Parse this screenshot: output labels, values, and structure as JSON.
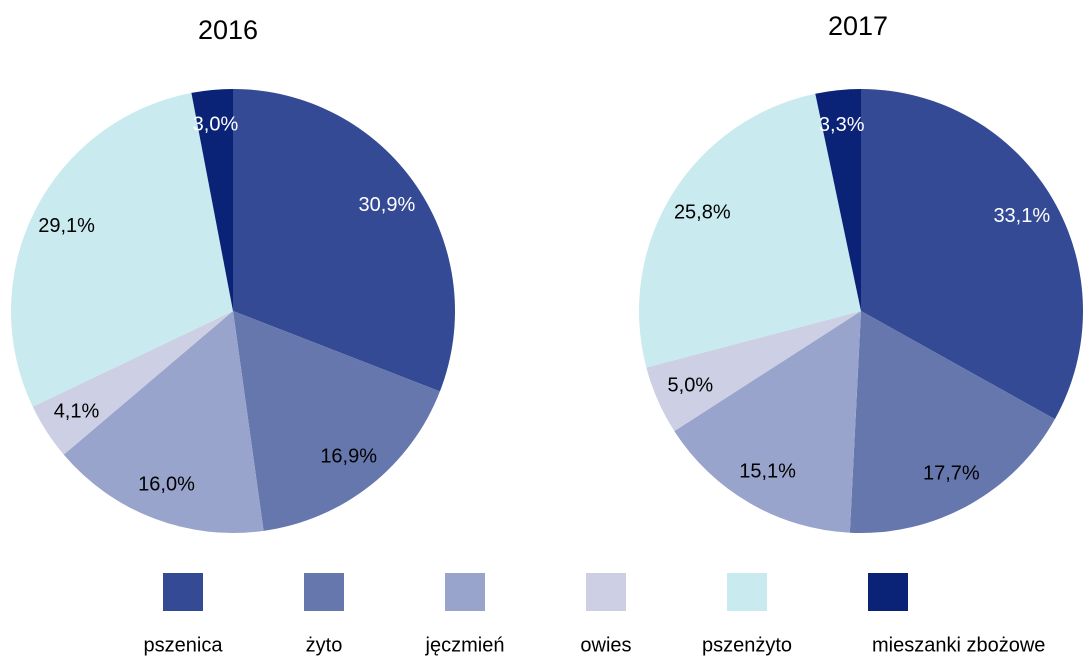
{
  "chart_data": [
    {
      "type": "pie",
      "title": "2016",
      "categories": [
        "pszenica",
        "żyto",
        "jęczmień",
        "owies",
        "pszenżyto",
        "mieszanki zbożowe"
      ],
      "values": [
        30.9,
        16.9,
        16.0,
        4.1,
        29.1,
        3.0
      ],
      "value_labels": [
        "30,9%",
        "16,9%",
        "16,0%",
        "4,1%",
        "29,1%",
        "3,0%"
      ],
      "colors": [
        "#344a94",
        "#6677ad",
        "#98a4cb",
        "#cdd0e4",
        "#c9eaee",
        "#0b2377"
      ]
    },
    {
      "type": "pie",
      "title": "2017",
      "categories": [
        "pszenica",
        "żyto",
        "jęczmień",
        "owies",
        "pszenżyto",
        "mieszanki zbożowe"
      ],
      "values": [
        33.1,
        17.7,
        15.1,
        5.0,
        25.8,
        3.3
      ],
      "value_labels": [
        "33,1%",
        "17,7%",
        "15,1%",
        "5,0%",
        "25,8%",
        "3,3%"
      ],
      "colors": [
        "#344a94",
        "#6677ad",
        "#98a4cb",
        "#cdd0e4",
        "#c9eaee",
        "#0b2377"
      ]
    }
  ]
}
